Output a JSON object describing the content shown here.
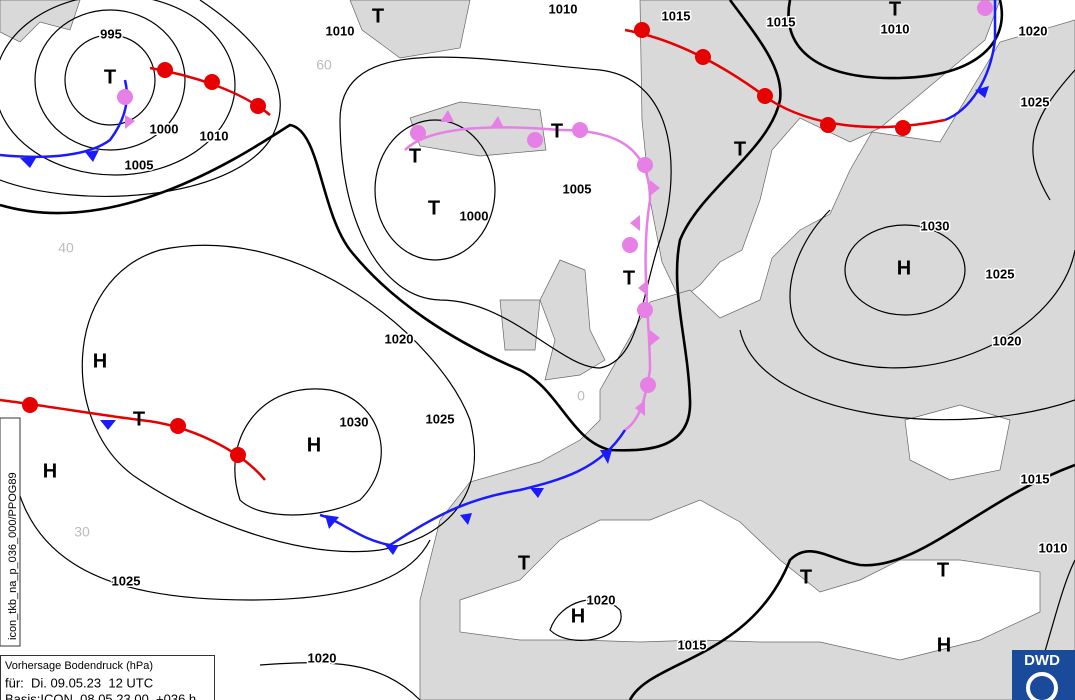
{
  "isobar_labels": [
    995,
    1000,
    1005,
    1010,
    1010,
    1010,
    1015,
    1015,
    1010,
    1020,
    1025,
    1005,
    1000,
    1030,
    1025,
    1020,
    1020,
    1025,
    1030,
    1015,
    1010,
    1020,
    1015,
    1025,
    1020
  ],
  "pressure_centers": [
    "T",
    "T",
    "T",
    "T",
    "T",
    "T",
    "T",
    "T",
    "H",
    "H",
    "H",
    "H",
    "T",
    "T",
    "H",
    "T",
    "T",
    "H"
  ],
  "grid_labels": [
    "60",
    "40",
    "30",
    "0"
  ],
  "info_box": {
    "title": "Vorhersage Bodendruck (hPa)",
    "valid": "für:  Di. 09.05.23  12 UTC",
    "base": "Basis:ICON  08.05.23 00  +036 h"
  },
  "product_code": "icon_tkb_na_p_036_000/PPOG89",
  "logo": "DWD"
}
